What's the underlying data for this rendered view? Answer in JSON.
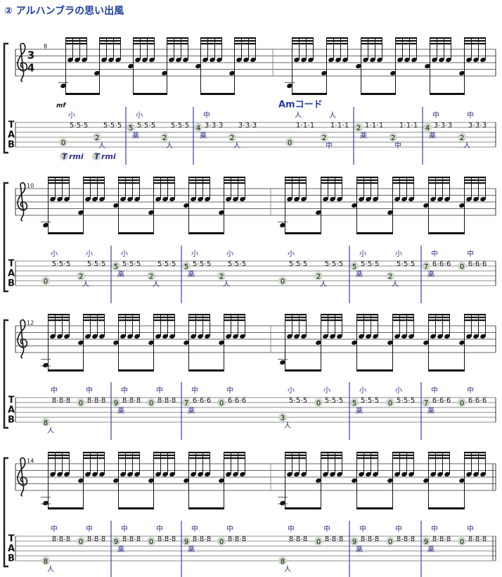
{
  "title": "② アルハンブラの思い出風",
  "time_signature": [
    "3",
    "4"
  ],
  "tab_label": [
    "T",
    "A",
    "B"
  ],
  "systems": [
    {
      "measure_number": "8",
      "dynamic": "mf",
      "fingering": [
        "T",
        "rmi",
        "T",
        "rmi"
      ],
      "measures": [
        {
          "eighths": [
            {
              "bass": "0",
              "string": 5,
              "treble": "5",
              "treble_finger": "小"
            },
            {
              "bass": "2",
              "string": 4,
              "bass_finger": "人",
              "treble": "5"
            },
            {
              "bass": "5",
              "string": 2,
              "bass_finger": "薬",
              "treble": "5",
              "treble_finger": "小"
            },
            {
              "bass": "2",
              "string": 4,
              "bass_finger": "人",
              "treble": "5"
            },
            {
              "bass": "4",
              "string": 2,
              "bass_finger": "薬",
              "treble": "3",
              "treble_finger": "中"
            },
            {
              "bass": "2",
              "string": 4,
              "bass_finger": "人",
              "treble": "3"
            }
          ]
        },
        {
          "chord": "Amコード",
          "eighths": [
            {
              "bass": "0",
              "string": 5,
              "treble": "1",
              "treble_finger": "人"
            },
            {
              "bass": "2",
              "string": 4,
              "bass_finger": "中",
              "treble": "1",
              "treble_finger": "人"
            },
            {
              "bass": "2",
              "string": 2,
              "bass_finger": "薬",
              "treble": "1"
            },
            {
              "bass": "2",
              "string": 4,
              "bass_finger": "中",
              "treble": "1"
            },
            {
              "bass": "4",
              "string": 2,
              "bass_finger": "薬",
              "treble": "3",
              "treble_finger": "中"
            },
            {
              "bass": "2",
              "string": 4,
              "bass_finger": "人",
              "treble": "3",
              "treble_finger": "中"
            }
          ]
        }
      ]
    },
    {
      "measure_number": "10",
      "measures": [
        {
          "eighths": [
            {
              "bass": "0",
              "string": 5,
              "treble": "5",
              "treble_finger": "小"
            },
            {
              "bass": "2",
              "string": 4,
              "bass_finger": "人",
              "treble": "5",
              "treble_finger": "小"
            },
            {
              "bass": "5",
              "string": 2,
              "bass_finger": "薬",
              "treble": "5",
              "treble_finger": "小"
            },
            {
              "bass": "2",
              "string": 4,
              "bass_finger": "人",
              "treble": "5"
            },
            {
              "bass": "5",
              "string": 2,
              "bass_finger": "薬",
              "treble": "5",
              "treble_finger": "小"
            },
            {
              "bass": "2",
              "string": 4,
              "bass_finger": "人",
              "treble": "5",
              "treble_finger": "小"
            }
          ]
        },
        {
          "eighths": [
            {
              "bass": "0",
              "string": 5,
              "treble": "5",
              "treble_finger": "小"
            },
            {
              "bass": "2",
              "string": 4,
              "bass_finger": "人",
              "treble": "5"
            },
            {
              "bass": "5",
              "string": 2,
              "bass_finger": "薬",
              "treble": "5",
              "treble_finger": "小"
            },
            {
              "bass": "2",
              "string": 4,
              "bass_finger": "人",
              "treble": "5",
              "treble_finger": "小"
            },
            {
              "bass": "7",
              "string": 2,
              "bass_finger": "薬",
              "treble": "6",
              "treble_finger": "中"
            },
            {
              "bass": "0",
              "string": 2,
              "treble": "6",
              "treble_finger": "中"
            }
          ]
        }
      ]
    },
    {
      "measure_number": "12",
      "measures": [
        {
          "eighths": [
            {
              "bass": "8",
              "string": 6,
              "bass_finger": "人",
              "treble": "8",
              "treble_finger": "中"
            },
            {
              "bass": "0",
              "string": 2,
              "treble": "8",
              "treble_finger": "中"
            },
            {
              "bass": "9",
              "string": 2,
              "bass_finger": "薬",
              "treble": "8",
              "treble_finger": "中"
            },
            {
              "bass": "0",
              "string": 2,
              "treble": "8",
              "treble_finger": "中"
            },
            {
              "bass": "7",
              "string": 2,
              "bass_finger": "薬",
              "treble": "6",
              "treble_finger": "中"
            },
            {
              "bass": "0",
              "string": 2,
              "treble": "6",
              "treble_finger": "中"
            }
          ]
        },
        {
          "eighths": [
            {
              "bass": "3",
              "string": 5,
              "bass_finger": "人",
              "treble": "5",
              "treble_finger": "小"
            },
            {
              "bass": "0",
              "string": 2,
              "treble": "5",
              "treble_finger": "小"
            },
            {
              "bass": "5",
              "string": 2,
              "bass_finger": "薬",
              "treble": "5",
              "treble_finger": "小"
            },
            {
              "bass": "0",
              "string": 2,
              "treble": "5",
              "treble_finger": "小"
            },
            {
              "bass": "7",
              "string": 2,
              "bass_finger": "薬",
              "treble": "6",
              "treble_finger": "中"
            },
            {
              "bass": "0",
              "string": 2,
              "treble": "6",
              "treble_finger": "中"
            }
          ]
        }
      ]
    },
    {
      "measure_number": "14",
      "measures": [
        {
          "eighths": [
            {
              "bass": "8",
              "string": 6,
              "bass_finger": "人",
              "treble": "8",
              "treble_finger": "中"
            },
            {
              "bass": "0",
              "string": 2,
              "treble": "8",
              "treble_finger": "中"
            },
            {
              "bass": "9",
              "string": 2,
              "bass_finger": "薬",
              "treble": "8",
              "treble_finger": "中"
            },
            {
              "bass": "0",
              "string": 2,
              "treble": "8",
              "treble_finger": "中"
            },
            {
              "bass": "9",
              "string": 2,
              "bass_finger": "薬",
              "treble": "8",
              "treble_finger": "中"
            },
            {
              "bass": "0",
              "string": 2,
              "treble": "8",
              "treble_finger": "中"
            }
          ]
        },
        {
          "eighths": [
            {
              "bass": "8",
              "string": 6,
              "bass_finger": "人",
              "treble": "8",
              "treble_finger": "中"
            },
            {
              "bass": "0",
              "string": 2,
              "treble": "8",
              "treble_finger": "中"
            },
            {
              "bass": "9",
              "string": 2,
              "bass_finger": "薬",
              "treble": "8",
              "treble_finger": "中"
            },
            {
              "bass": "0",
              "string": 2,
              "treble": "8",
              "treble_finger": "中"
            },
            {
              "bass": "9",
              "string": 2,
              "bass_finger": "薬",
              "treble": "8",
              "treble_finger": "中"
            },
            {
              "bass": "0",
              "string": 2,
              "treble": "8",
              "treble_finger": "中"
            }
          ]
        }
      ]
    }
  ]
}
